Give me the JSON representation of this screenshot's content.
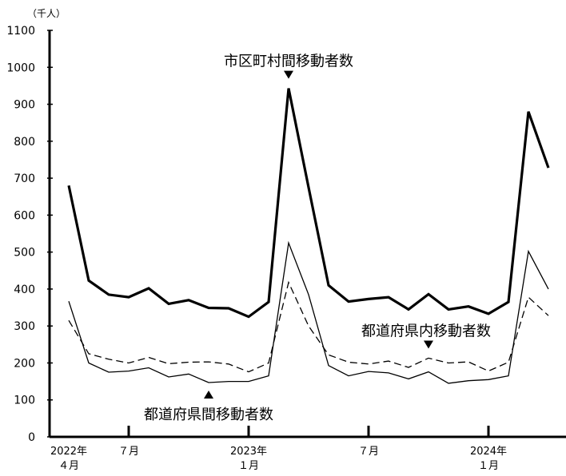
{
  "chart_data": {
    "type": "line",
    "unit_label": "（千人）",
    "ylim": [
      0,
      1100
    ],
    "yticks": [
      0,
      100,
      200,
      300,
      400,
      500,
      600,
      700,
      800,
      900,
      1000,
      1100
    ],
    "x": [
      "2022-04",
      "2022-05",
      "2022-06",
      "2022-07",
      "2022-08",
      "2022-09",
      "2022-10",
      "2022-11",
      "2022-12",
      "2023-01",
      "2023-02",
      "2023-03",
      "2023-04",
      "2023-05",
      "2023-06",
      "2023-07",
      "2023-08",
      "2023-09",
      "2023-10",
      "2023-11",
      "2023-12",
      "2024-01",
      "2024-02",
      "2024-03",
      "2024-04"
    ],
    "x_tick_labels": [
      {
        "x": "2022-04",
        "lines": [
          "2022年",
          "４月"
        ]
      },
      {
        "x": "2022-07",
        "lines": [
          "７月",
          ""
        ]
      },
      {
        "x": "2023-01",
        "lines": [
          "2023年",
          "１月"
        ]
      },
      {
        "x": "2023-07",
        "lines": [
          "７月",
          ""
        ]
      },
      {
        "x": "2024-01",
        "lines": [
          "2024年",
          "１月"
        ]
      }
    ],
    "series": [
      {
        "name": "市区町村間移動者数",
        "style": "thick",
        "values": [
          680,
          423,
          385,
          378,
          402,
          360,
          370,
          349,
          348,
          325,
          365,
          943,
          675,
          410,
          366,
          373,
          378,
          345,
          386,
          345,
          353,
          333,
          365,
          880,
          728
        ]
      },
      {
        "name": "都道府県内移動者数",
        "style": "dashed",
        "values": [
          315,
          225,
          210,
          200,
          215,
          198,
          202,
          203,
          197,
          176,
          200,
          418,
          300,
          222,
          202,
          197,
          205,
          188,
          213,
          200,
          203,
          178,
          202,
          378,
          328
        ]
      },
      {
        "name": "都道府県間移動者数",
        "style": "thin",
        "values": [
          367,
          200,
          175,
          178,
          187,
          162,
          170,
          147,
          150,
          150,
          165,
          525,
          385,
          193,
          165,
          177,
          173,
          157,
          176,
          145,
          152,
          155,
          165,
          502,
          400
        ]
      }
    ],
    "annotations": [
      {
        "series": 0,
        "label": "市区町村間移動者数",
        "point_index": 11,
        "marker": "down"
      },
      {
        "series": 1,
        "label": "都道府県内移動者数",
        "point_index": 18,
        "marker": "down"
      },
      {
        "series": 2,
        "label": "都道府県間移動者数",
        "point_index": 7,
        "marker": "up"
      }
    ],
    "colors": {
      "line": "#000000",
      "axis": "#000000",
      "background": "#ffffff"
    },
    "grid": false
  }
}
